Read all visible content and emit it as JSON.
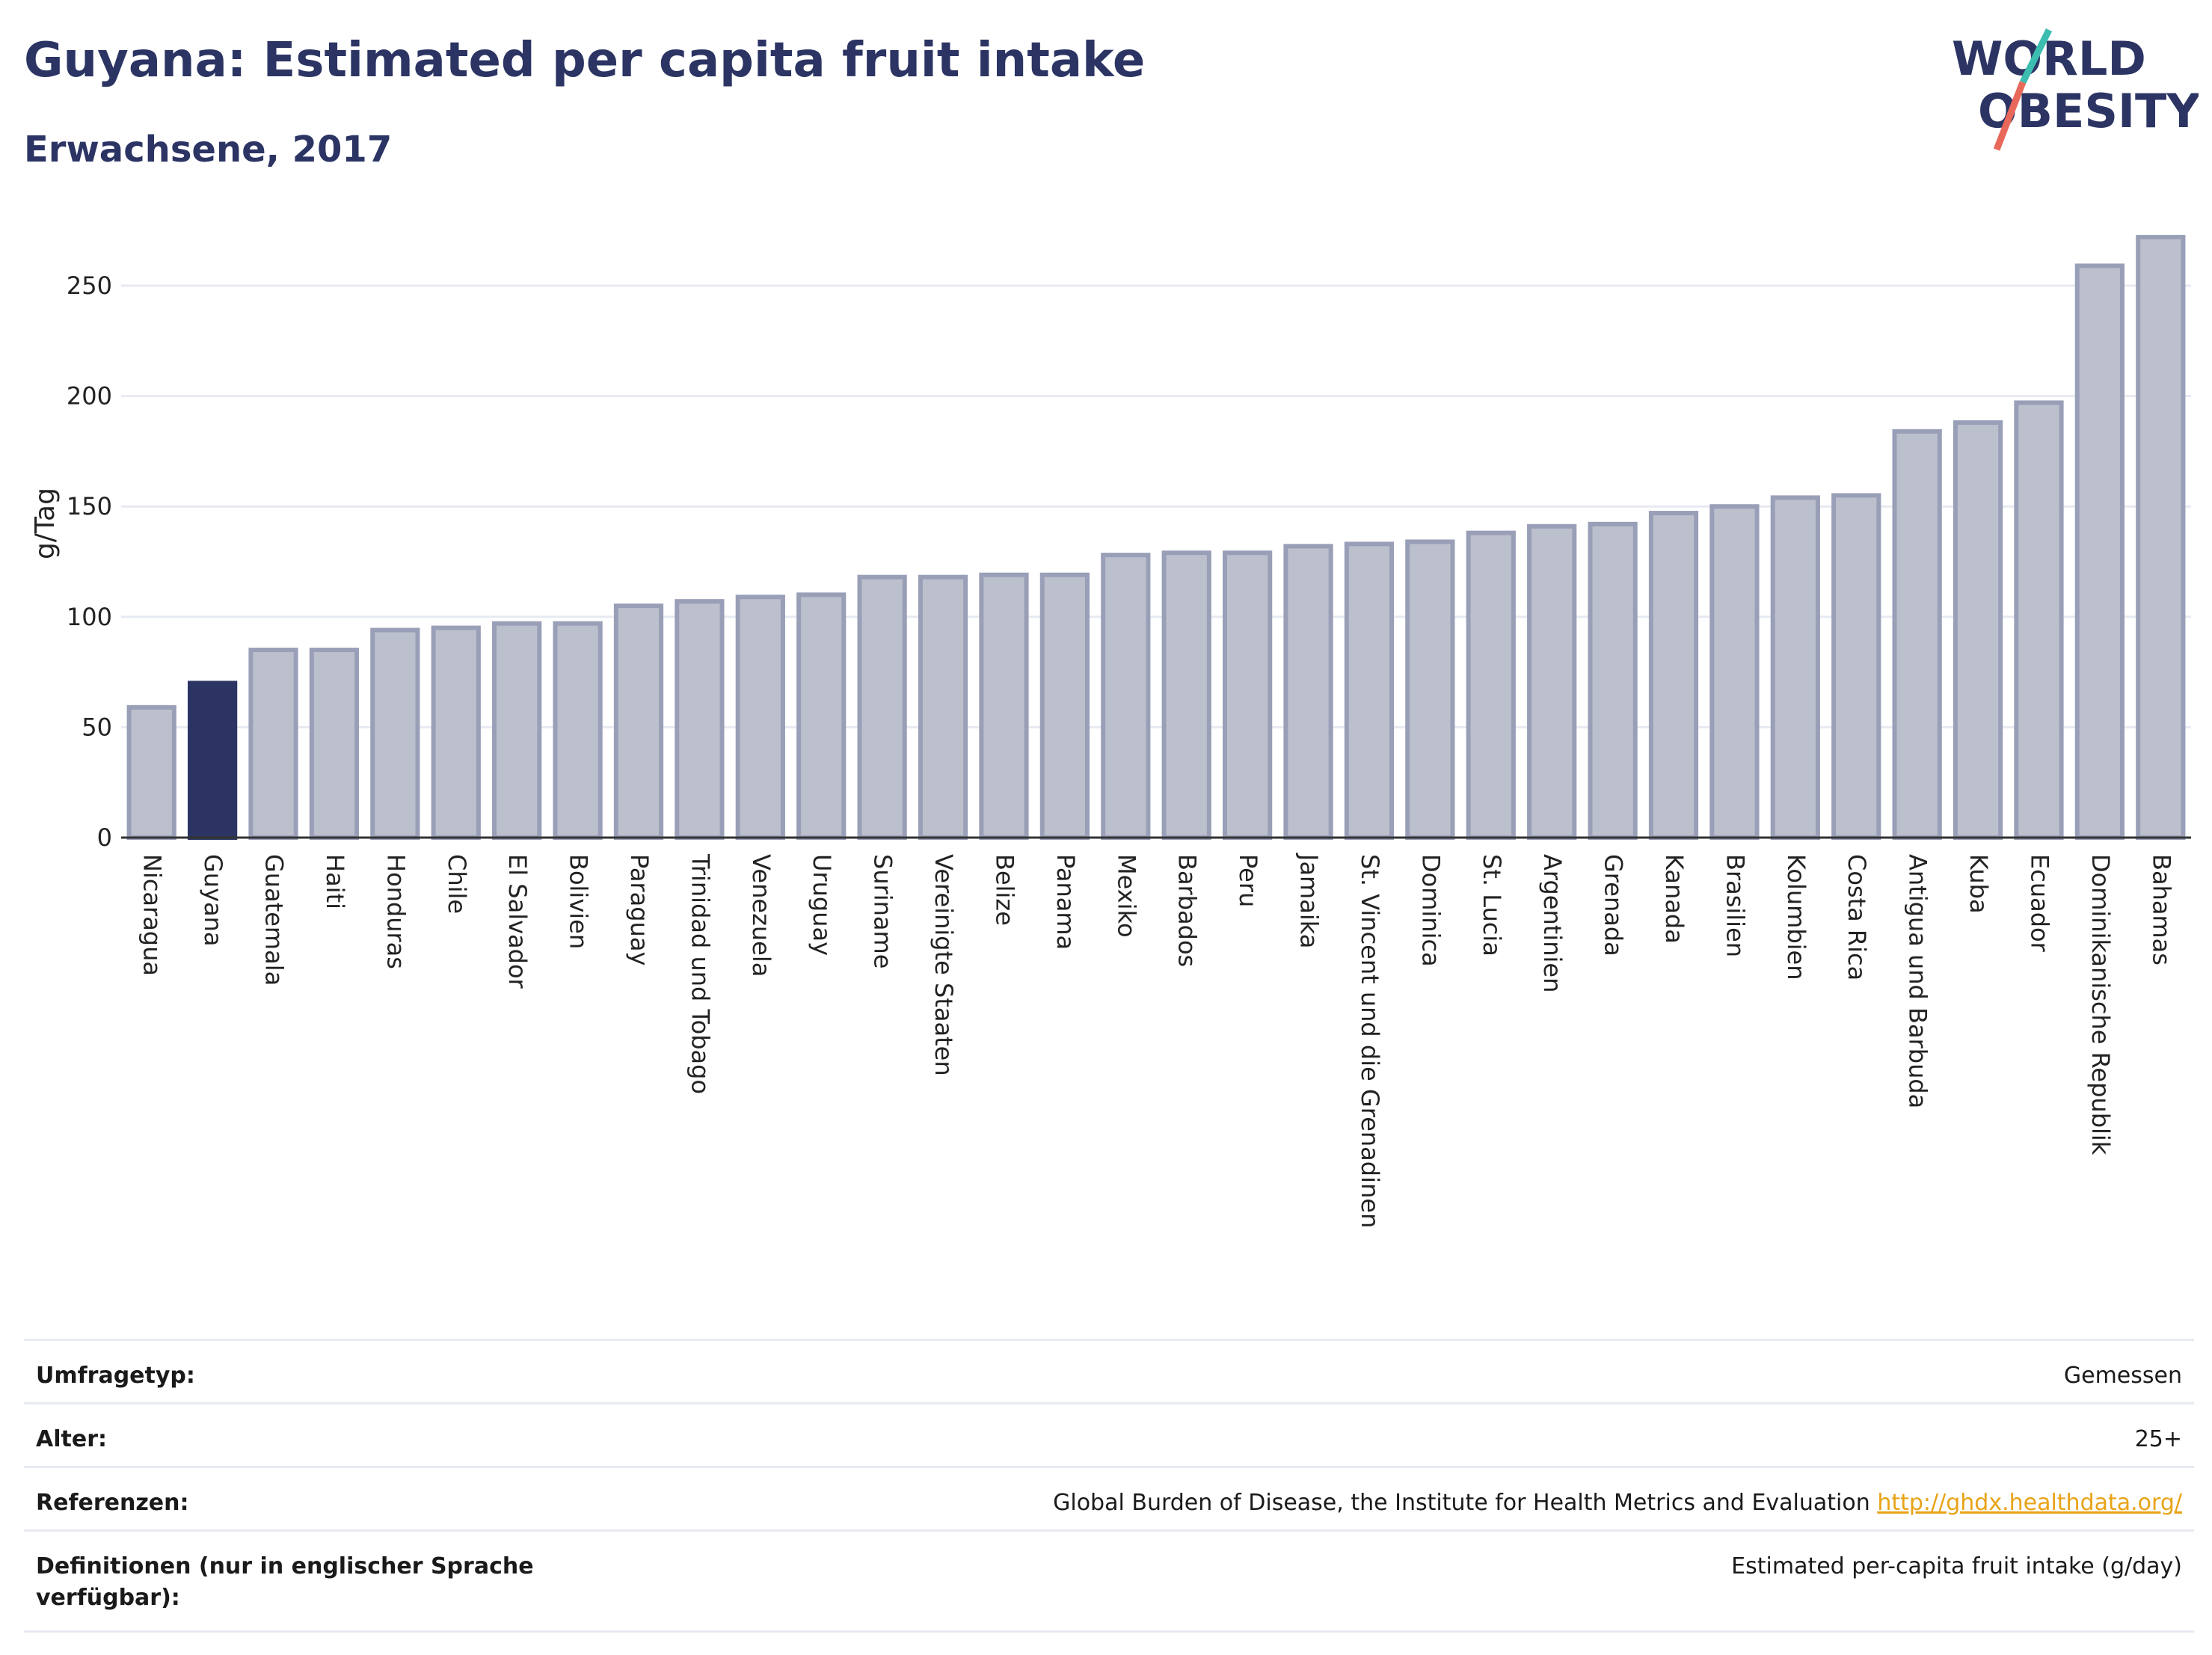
{
  "header": {
    "title": "Guyana: Estimated per capita fruit intake",
    "subtitle": "Erwachsene, 2017"
  },
  "logo": {
    "line1": "WORLD",
    "line2": "OBESITY",
    "colors": {
      "text": "#2b3463",
      "slash_teal": "#3cbdb0",
      "slash_red": "#e8685a"
    }
  },
  "colors": {
    "highlight_bar": "#2b3463",
    "other_bar_fill": "#bcc0cd",
    "other_bar_stroke": "#9a9fb8",
    "gridline": "#e8eaf2",
    "axis": "#333333"
  },
  "chart_data": {
    "type": "bar",
    "title": "",
    "xlabel": "",
    "ylabel": "g/Tag",
    "ylim": [
      0,
      275
    ],
    "yticks": [
      0,
      50,
      100,
      150,
      200,
      250
    ],
    "grid": true,
    "highlight": "Guyana",
    "categories": [
      "Nicaragua",
      "Guyana",
      "Guatemala",
      "Haiti",
      "Honduras",
      "Chile",
      "El Salvador",
      "Bolivien",
      "Paraguay",
      "Trinidad und Tobago",
      "Venezuela",
      "Uruguay",
      "Suriname",
      "Vereinigte Staaten",
      "Belize",
      "Panama",
      "Mexiko",
      "Barbados",
      "Peru",
      "Jamaika",
      "St. Vincent und die Grenadinen",
      "Dominica",
      "St. Lucia",
      "Argentinien",
      "Grenada",
      "Kanada",
      "Brasilien",
      "Kolumbien",
      "Costa Rica",
      "Antigua und Barbuda",
      "Kuba",
      "Ecuador",
      "Dominikanische Republik",
      "Bahamas"
    ],
    "values": [
      59,
      70,
      85,
      85,
      94,
      95,
      97,
      97,
      105,
      107,
      109,
      110,
      118,
      118,
      119,
      119,
      128,
      129,
      129,
      132,
      133,
      134,
      138,
      141,
      142,
      147,
      150,
      154,
      155,
      184,
      188,
      197,
      259,
      272
    ]
  },
  "info": [
    {
      "label": "Umfragetyp:",
      "value": "Gemessen"
    },
    {
      "label": "Alter:",
      "value": "25+"
    },
    {
      "label": "Referenzen:",
      "value": "Global Burden of Disease, the Institute for Health Metrics and Evaluation",
      "link": "http://ghdx.healthdata.org/"
    },
    {
      "label": "Definitionen (nur in englischer Sprache verfügbar):",
      "value": "Estimated per-capita fruit intake (g/day)"
    }
  ]
}
